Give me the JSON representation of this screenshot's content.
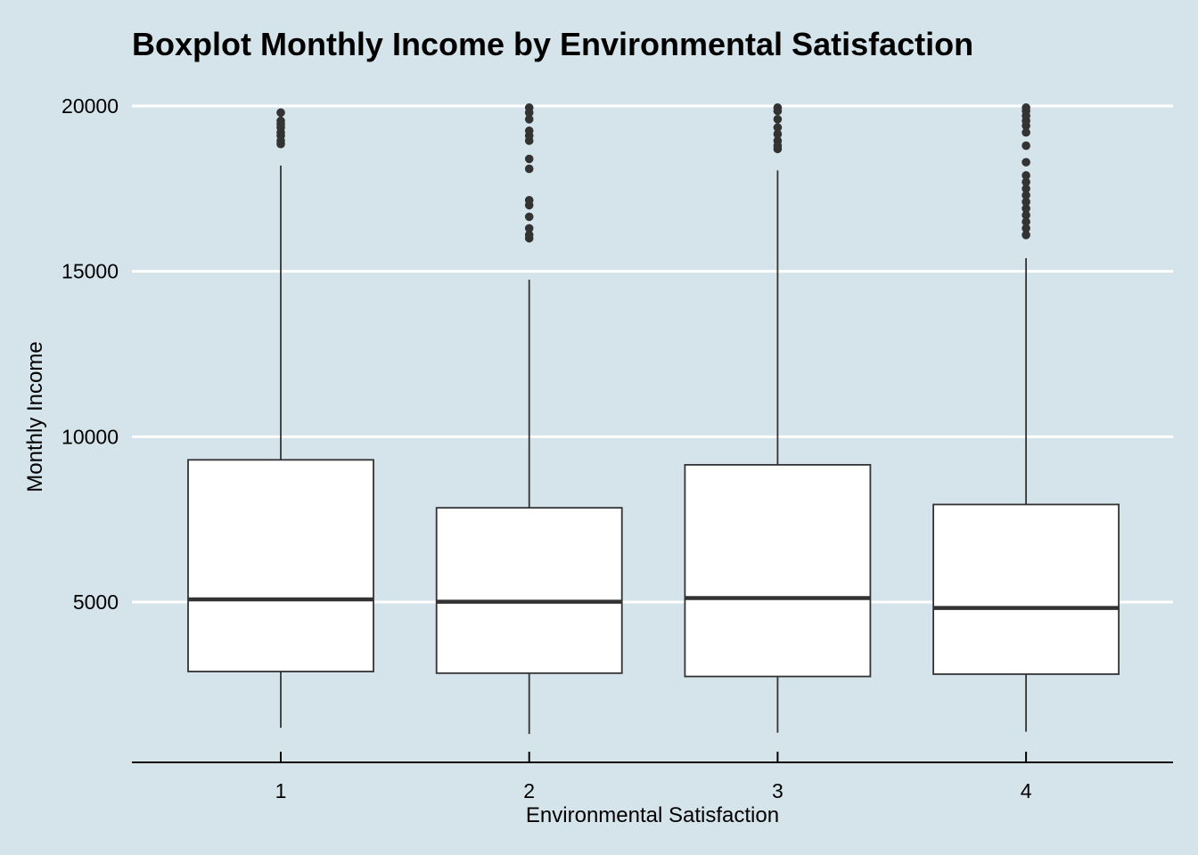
{
  "chart_data": {
    "type": "boxplot",
    "title": "Boxplot Monthly Income by Environmental Satisfaction",
    "xlabel": "Environmental Satisfaction",
    "ylabel": "Monthly Income",
    "categories": [
      "1",
      "2",
      "3",
      "4"
    ],
    "yticks": [
      5000,
      10000,
      15000,
      20000
    ],
    "ylim": [
      1009,
      20100
    ],
    "grid": "horizontal",
    "legend": "none",
    "boxes": [
      {
        "category": "1",
        "whisker_low": 1200,
        "q1": 2900,
        "median": 5080,
        "q3": 9300,
        "whisker_high": 18200,
        "outliers": [
          18850,
          18950,
          19100,
          19200,
          19350,
          19450,
          19550,
          19800
        ]
      },
      {
        "category": "2",
        "whisker_low": 1010,
        "q1": 2850,
        "median": 5010,
        "q3": 7850,
        "whisker_high": 14750,
        "outliers": [
          16000,
          16100,
          16300,
          16650,
          17000,
          17150,
          18100,
          18400,
          18950,
          19100,
          19250,
          19600,
          19800,
          19950
        ]
      },
      {
        "category": "3",
        "whisker_low": 1050,
        "q1": 2750,
        "median": 5120,
        "q3": 9150,
        "whisker_high": 18050,
        "outliers": [
          18700,
          18800,
          18950,
          19150,
          19350,
          19600,
          19850,
          19950
        ]
      },
      {
        "category": "4",
        "whisker_low": 1080,
        "q1": 2820,
        "median": 4820,
        "q3": 7950,
        "whisker_high": 15400,
        "outliers": [
          16100,
          16300,
          16500,
          16700,
          16900,
          17100,
          17300,
          17500,
          17700,
          17900,
          18300,
          18800,
          19200,
          19400,
          19550,
          19700,
          19850,
          19950
        ]
      }
    ]
  }
}
